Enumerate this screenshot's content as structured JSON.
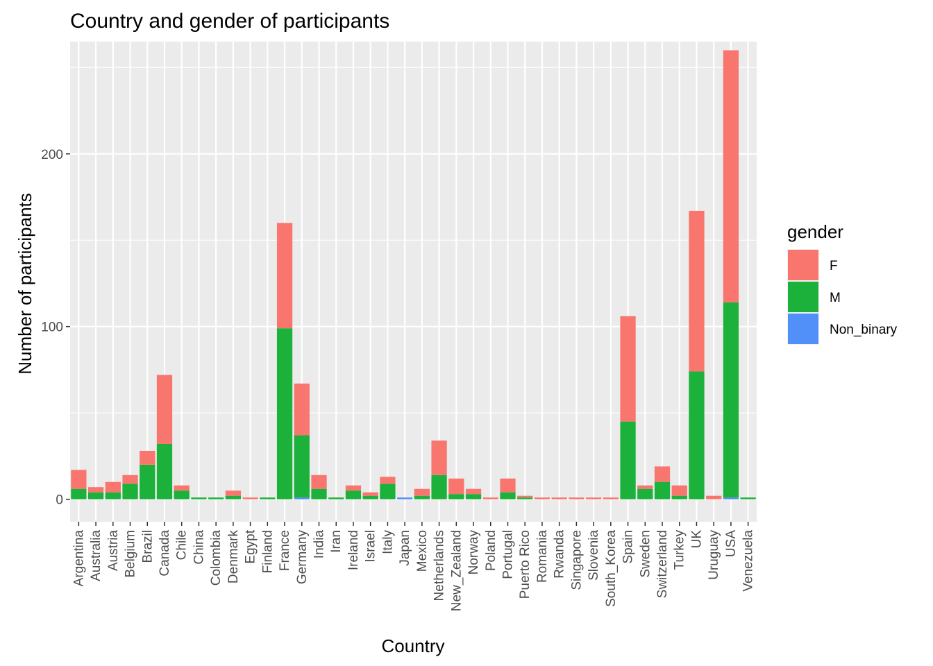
{
  "chart_data": {
    "type": "bar",
    "stacked": true,
    "title": "Country and gender of participants",
    "xlabel": "Country",
    "ylabel": "Number of participants",
    "ylim": [
      -13,
      265
    ],
    "y_ticks": [
      0,
      100,
      200
    ],
    "grid": true,
    "legend_position": "right",
    "legend_title": "gender",
    "categories": [
      "Argentina",
      "Australia",
      "Austria",
      "Belgium",
      "Brazil",
      "Canada",
      "Chile",
      "China",
      "Colombia",
      "Denmark",
      "Egypt",
      "Finland",
      "France",
      "Germany",
      "India",
      "Iran",
      "Ireland",
      "Israel",
      "Italy",
      "Japan",
      "Mexico",
      "Netherlands",
      "New_Zealand",
      "Norway",
      "Poland",
      "Portugal",
      "Puerto Rico",
      "Romania",
      "Rwanda",
      "Singapore",
      "Slovenia",
      "South_Korea",
      "Spain",
      "Sweden",
      "Switzerland",
      "Turkey",
      "UK",
      "Uruguay",
      "USA",
      "Venezuela"
    ],
    "series": [
      {
        "name": "F",
        "color": "#F8766D",
        "values": [
          11,
          3,
          6,
          5,
          8,
          40,
          3,
          0,
          0,
          3,
          1,
          0,
          61,
          30,
          8,
          0,
          3,
          2,
          4,
          0,
          4,
          20,
          9,
          3,
          1,
          8,
          1,
          1,
          1,
          1,
          1,
          1,
          61,
          2,
          9,
          6,
          93,
          2,
          146,
          0
        ]
      },
      {
        "name": "M",
        "color": "#1BB13A",
        "values": [
          6,
          4,
          4,
          9,
          20,
          32,
          5,
          1,
          1,
          2,
          0,
          1,
          99,
          36,
          6,
          1,
          5,
          2,
          9,
          0,
          2,
          14,
          3,
          3,
          0,
          4,
          1,
          0,
          0,
          0,
          0,
          0,
          45,
          6,
          10,
          2,
          74,
          0,
          113,
          1
        ]
      },
      {
        "name": "Non_binary",
        "color": "#5090F8",
        "values": [
          0,
          0,
          0,
          0,
          0,
          0,
          0,
          0,
          0,
          0,
          0,
          0,
          0,
          1,
          0,
          0,
          0,
          0,
          0,
          1,
          0,
          0,
          0,
          0,
          0,
          0,
          0,
          0,
          0,
          0,
          0,
          0,
          0,
          0,
          0,
          0,
          0,
          0,
          1,
          0
        ]
      }
    ]
  }
}
